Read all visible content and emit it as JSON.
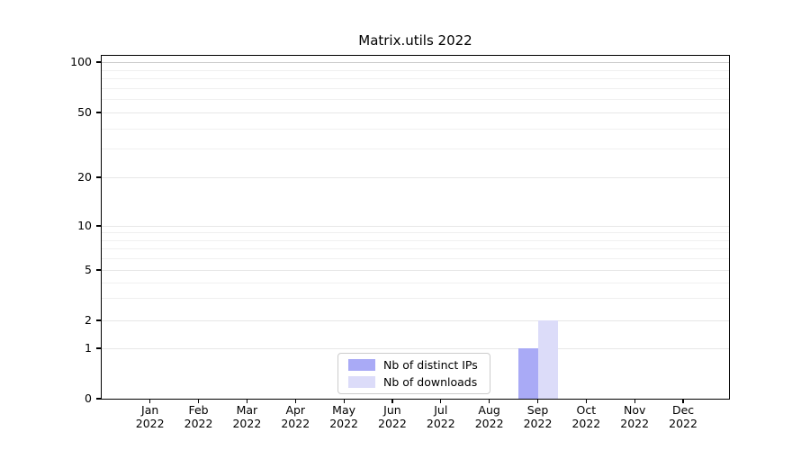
{
  "chart_data": {
    "type": "bar",
    "title": "Matrix.utils 2022",
    "xlabel": "",
    "ylabel": "",
    "categories": [
      {
        "month": "Jan",
        "year": "2022"
      },
      {
        "month": "Feb",
        "year": "2022"
      },
      {
        "month": "Mar",
        "year": "2022"
      },
      {
        "month": "Apr",
        "year": "2022"
      },
      {
        "month": "May",
        "year": "2022"
      },
      {
        "month": "Jun",
        "year": "2022"
      },
      {
        "month": "Jul",
        "year": "2022"
      },
      {
        "month": "Aug",
        "year": "2022"
      },
      {
        "month": "Sep",
        "year": "2022"
      },
      {
        "month": "Oct",
        "year": "2022"
      },
      {
        "month": "Nov",
        "year": "2022"
      },
      {
        "month": "Dec",
        "year": "2022"
      }
    ],
    "series": [
      {
        "name": "Nb of distinct IPs",
        "color": "#a9aaf6",
        "values": [
          0,
          0,
          0,
          0,
          0,
          0,
          0,
          0,
          1,
          0,
          0,
          0
        ]
      },
      {
        "name": "Nb of downloads",
        "color": "#dcdcf9",
        "values": [
          0,
          0,
          0,
          0,
          0,
          0,
          0,
          0,
          2,
          0,
          0,
          0
        ]
      }
    ],
    "y_axis": {
      "scale": "symlog",
      "ticks": [
        0,
        1,
        2,
        5,
        10,
        20,
        50,
        100
      ],
      "minor_ticks": [
        3,
        4,
        6,
        7,
        8,
        9,
        30,
        40,
        60,
        70,
        80,
        90
      ],
      "range": [
        0,
        110
      ]
    },
    "grid": "horizontal, major and minor, light gray",
    "legend_position": "lower center inside plot"
  }
}
